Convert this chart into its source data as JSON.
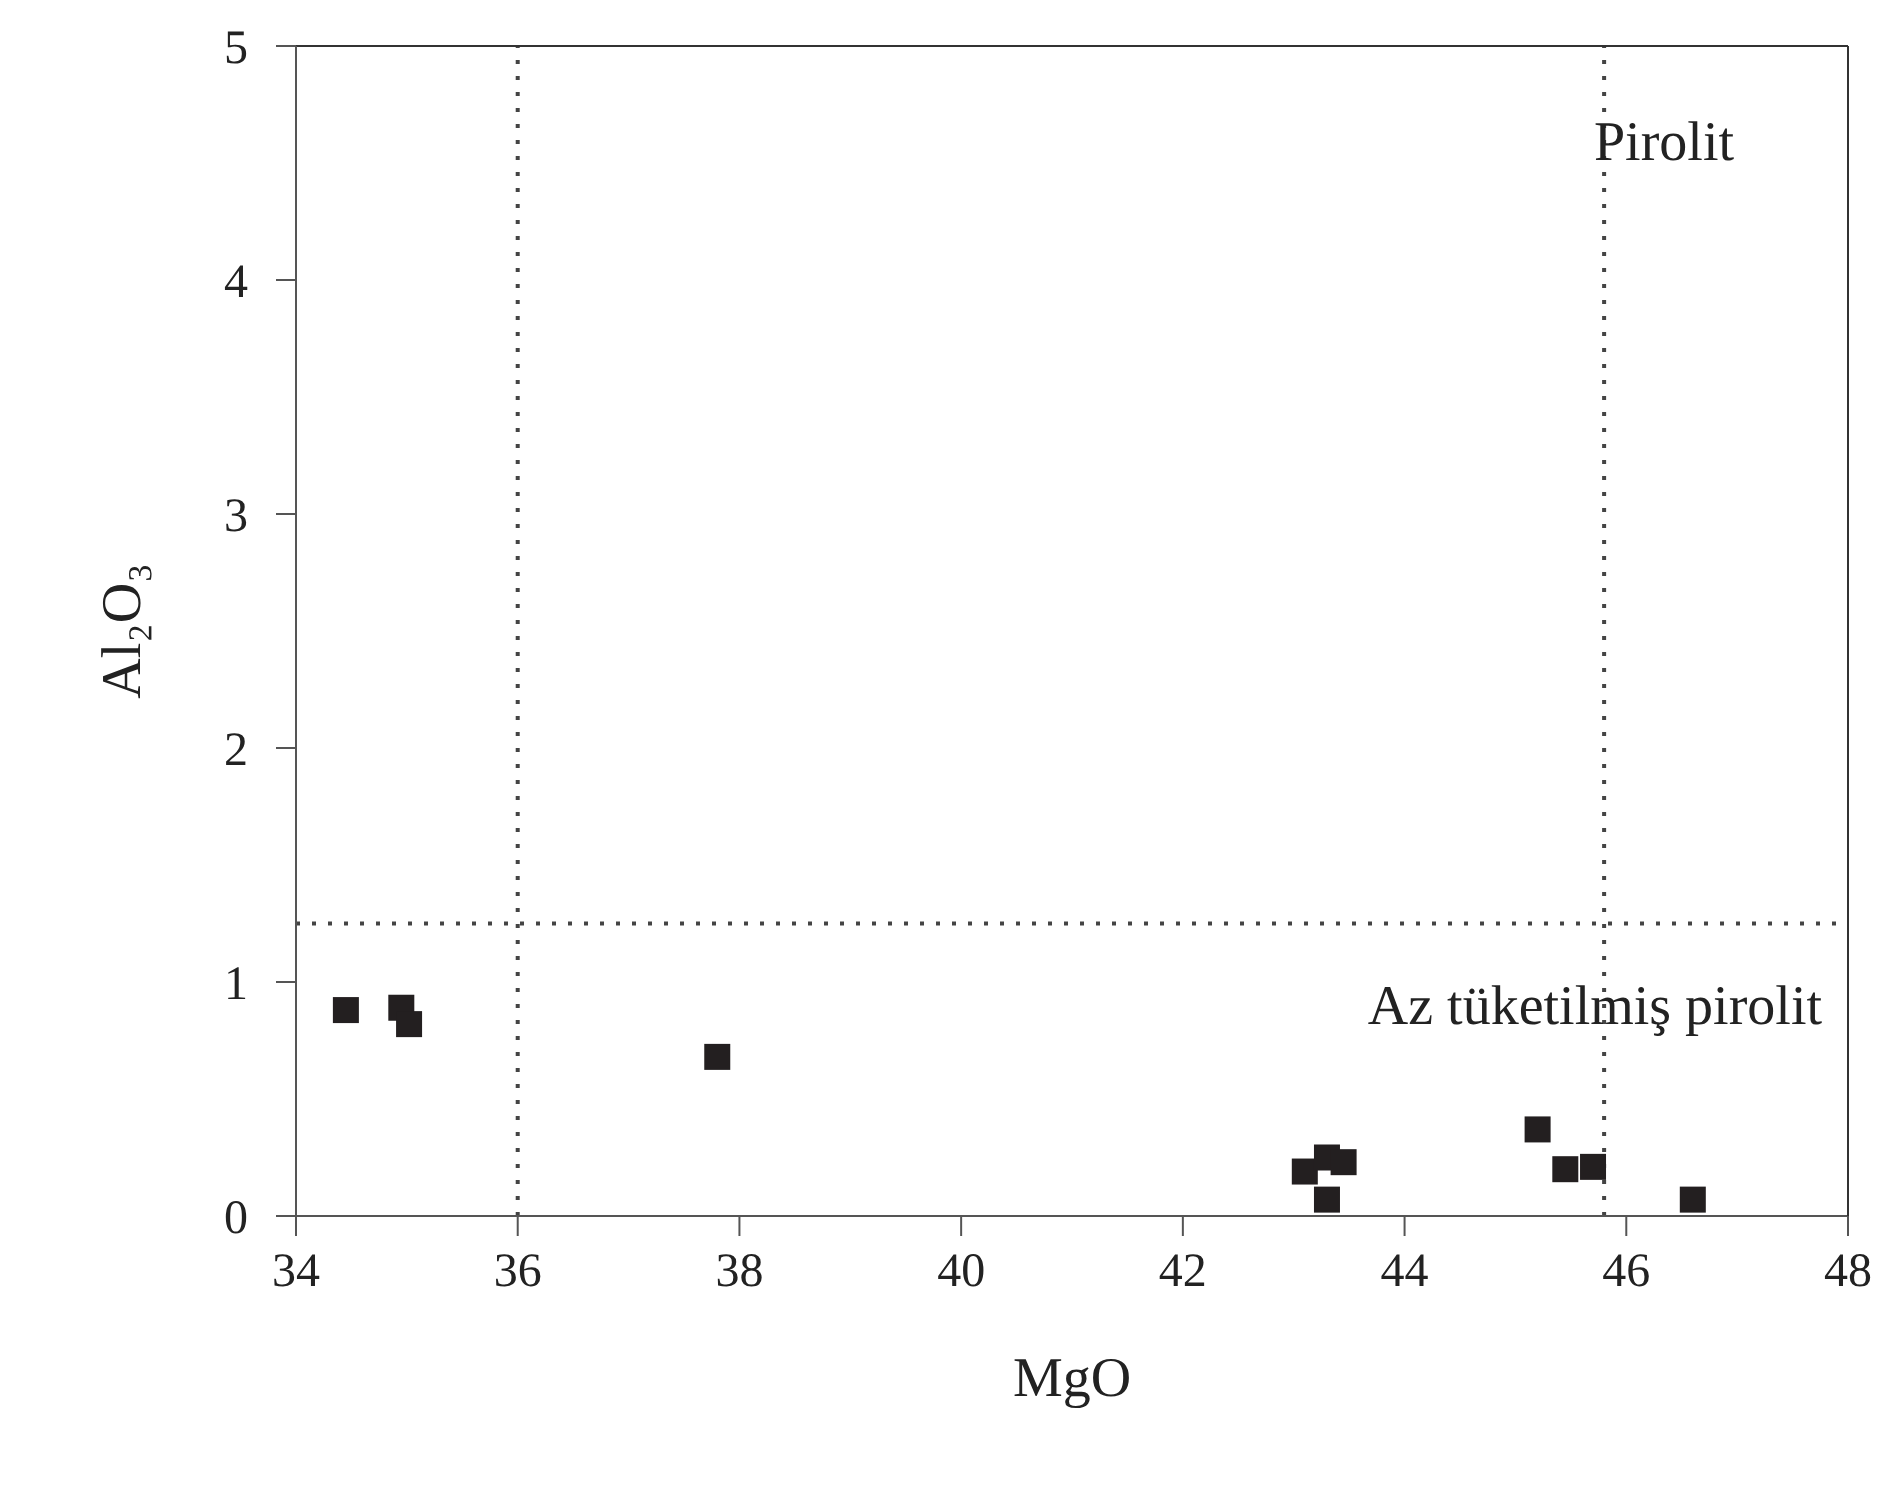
{
  "chart_data": {
    "type": "scatter",
    "xlabel": "MgO",
    "ylabel": "Al₂O₃",
    "series": [
      {
        "color": "#231f20",
        "x": [
          34.45,
          34.95,
          35.02,
          37.8,
          43.1,
          43.3,
          43.3,
          43.45,
          45.2,
          45.45,
          45.7,
          46.6
        ],
        "values": [
          0.88,
          0.89,
          0.82,
          0.68,
          0.19,
          0.07,
          0.25,
          0.23,
          0.37,
          0.2,
          0.21,
          0.07
        ]
      }
    ],
    "marker": "square",
    "xlim": [
      34,
      48
    ],
    "xticks": [
      34,
      36,
      38,
      40,
      42,
      44,
      46,
      48
    ],
    "ylim": [
      0,
      5
    ],
    "yticks": [
      0,
      1,
      2,
      3,
      4,
      5
    ],
    "ref_lines": [
      {
        "axis": "y",
        "value": 1.25,
        "line_style": "dotted"
      },
      {
        "axis": "x",
        "value": 36,
        "line_style": "dotted"
      },
      {
        "axis": "x",
        "value": 45.8,
        "line_style": "dotted"
      }
    ],
    "annotations": [
      "Pirolit",
      "Az tüketilmiş pirolit"
    ]
  }
}
